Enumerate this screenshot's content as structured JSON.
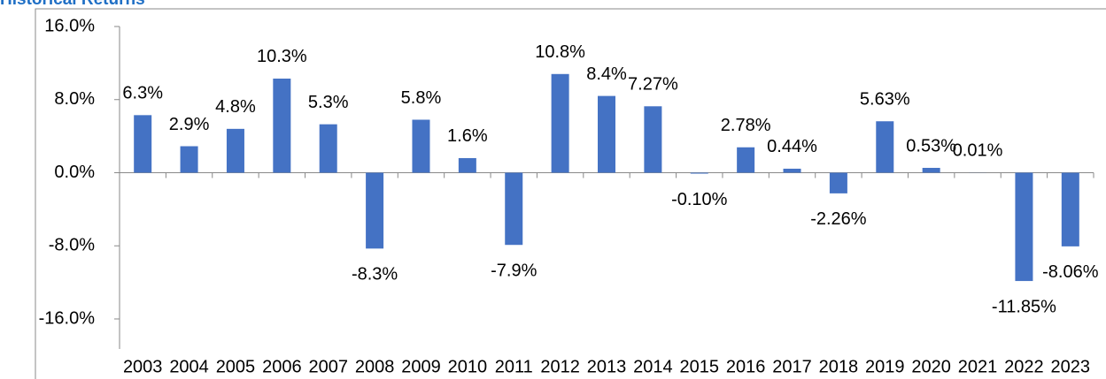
{
  "chart_data": {
    "type": "bar",
    "title": "Historical Returns",
    "categories": [
      "2003",
      "2004",
      "2005",
      "2006",
      "2007",
      "2008",
      "2009",
      "2010",
      "2011",
      "2012",
      "2013",
      "2014",
      "2015",
      "2016",
      "2017",
      "2018",
      "2019",
      "2020",
      "2021",
      "2022",
      "2023"
    ],
    "values": [
      6.3,
      2.9,
      4.8,
      10.3,
      5.3,
      -8.3,
      5.8,
      1.6,
      -7.9,
      10.8,
      8.4,
      7.27,
      -0.1,
      2.78,
      0.44,
      -2.26,
      5.63,
      0.53,
      0.01,
      -11.85,
      -8.06
    ],
    "value_labels": [
      "6.3%",
      "2.9%",
      "4.8%",
      "10.3%",
      "5.3%",
      "-8.3%",
      "5.8%",
      "1.6%",
      "-7.9%",
      "10.8%",
      "8.4%",
      "7.27%",
      "-0.10%",
      "2.78%",
      "0.44%",
      "-2.26%",
      "5.63%",
      "0.53%",
      "0.01%",
      "-11.85%",
      "-8.06%"
    ],
    "color": "#4472c4",
    "ylim": [
      -16,
      16
    ],
    "yticks": [
      {
        "value": -16,
        "label": "-16.0%"
      },
      {
        "value": -8,
        "label": "-8.0%"
      },
      {
        "value": 0,
        "label": "0.0%"
      },
      {
        "value": 8,
        "label": "8.0%"
      },
      {
        "value": 16,
        "label": "16.0%"
      }
    ]
  }
}
